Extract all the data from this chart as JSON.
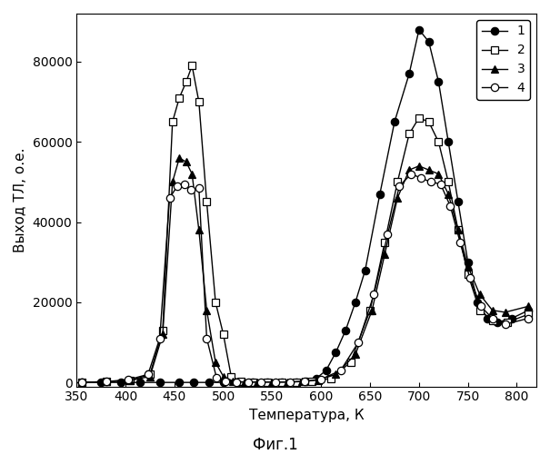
{
  "xlabel": "Температура, К",
  "ylabel": "Выход ТЛ, о.е.",
  "figcaption": "Фиг.1",
  "xlim": [
    350,
    820
  ],
  "ylim": [
    -1000,
    92000
  ],
  "xticks": [
    350,
    400,
    450,
    500,
    550,
    600,
    650,
    700,
    750,
    800
  ],
  "yticks": [
    0,
    20000,
    40000,
    60000,
    80000
  ],
  "series": [
    {
      "label": "1",
      "marker": "o",
      "mfc": "#000000",
      "mec": "#000000",
      "x": [
        355,
        375,
        395,
        415,
        435,
        455,
        470,
        485,
        500,
        515,
        530,
        545,
        560,
        575,
        585,
        595,
        605,
        615,
        625,
        635,
        645,
        660,
        675,
        690,
        700,
        710,
        720,
        730,
        740,
        750,
        760,
        770,
        780,
        795,
        812
      ],
      "y": [
        0,
        0,
        0,
        0,
        0,
        0,
        0,
        0,
        0,
        0,
        0,
        0,
        0,
        0,
        300,
        1000,
        3000,
        7500,
        13000,
        20000,
        28000,
        47000,
        65000,
        77000,
        88000,
        85000,
        75000,
        60000,
        45000,
        30000,
        20000,
        16000,
        15000,
        16000,
        18000
      ]
    },
    {
      "label": "2",
      "marker": "s",
      "mfc": "#ffffff",
      "mec": "#000000",
      "x": [
        355,
        380,
        405,
        425,
        438,
        448,
        455,
        462,
        468,
        475,
        483,
        492,
        500,
        508,
        518,
        530,
        545,
        560,
        575,
        590,
        610,
        630,
        650,
        665,
        678,
        690,
        700,
        710,
        720,
        730,
        740,
        750,
        762,
        775,
        790,
        812
      ],
      "y": [
        0,
        200,
        500,
        2000,
        13000,
        65000,
        71000,
        75000,
        79000,
        70000,
        45000,
        20000,
        12000,
        1500,
        300,
        100,
        100,
        100,
        100,
        200,
        1000,
        5000,
        18000,
        35000,
        50000,
        62000,
        66000,
        65000,
        60000,
        50000,
        38000,
        27000,
        18000,
        15500,
        15000,
        17000
      ]
    },
    {
      "label": "3",
      "marker": "^",
      "mfc": "#000000",
      "mec": "#000000",
      "x": [
        355,
        380,
        405,
        425,
        438,
        448,
        455,
        462,
        468,
        475,
        483,
        492,
        500,
        510,
        522,
        535,
        550,
        565,
        580,
        597,
        615,
        635,
        652,
        665,
        678,
        690,
        700,
        710,
        720,
        730,
        740,
        750,
        762,
        775,
        788,
        812
      ],
      "y": [
        0,
        200,
        500,
        1500,
        12000,
        50000,
        56000,
        55000,
        52000,
        38000,
        18000,
        5000,
        1500,
        300,
        100,
        100,
        100,
        100,
        200,
        600,
        2000,
        7000,
        18000,
        32000,
        46000,
        53000,
        54000,
        53000,
        52000,
        47000,
        38000,
        29000,
        22000,
        18000,
        17500,
        19000
      ]
    },
    {
      "label": "4",
      "marker": "o",
      "mfc": "#ffffff",
      "mec": "#000000",
      "x": [
        355,
        380,
        403,
        423,
        435,
        445,
        453,
        460,
        467,
        475,
        483,
        493,
        502,
        513,
        525,
        538,
        553,
        568,
        583,
        600,
        620,
        638,
        654,
        668,
        680,
        692,
        702,
        712,
        722,
        732,
        742,
        752,
        763,
        775,
        788,
        812
      ],
      "y": [
        0,
        200,
        700,
        2000,
        11000,
        46000,
        49000,
        49500,
        48000,
        48500,
        11000,
        1200,
        300,
        100,
        100,
        100,
        100,
        100,
        300,
        800,
        3000,
        10000,
        22000,
        37000,
        49000,
        52000,
        51000,
        50000,
        49500,
        44000,
        35000,
        26000,
        19000,
        16000,
        14500,
        16000
      ]
    }
  ],
  "background_color": "#ffffff"
}
